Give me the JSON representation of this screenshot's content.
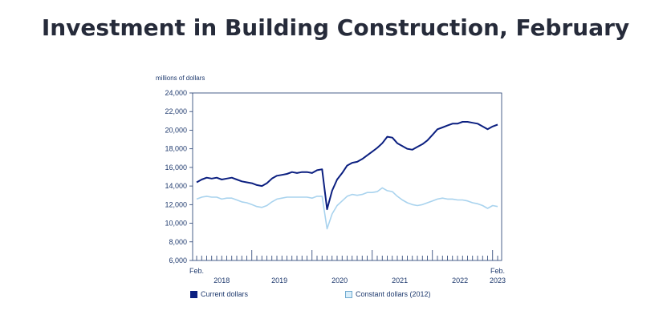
{
  "title": "Investment in Building Construction, February",
  "chart_data": {
    "type": "line",
    "title": "Investment in Building Construction, February",
    "ylabel": "millions of dollars",
    "xlabel": "",
    "ylim": [
      6000,
      24000
    ],
    "yticks": [
      6000,
      8000,
      10000,
      12000,
      14000,
      16000,
      18000,
      20000,
      22000,
      24000
    ],
    "ytick_labels": [
      "6,000",
      "8,000",
      "10,000",
      "12,000",
      "14,000",
      "16,000",
      "18,000",
      "20,000",
      "22,000",
      "24,000"
    ],
    "x_start_label": "Feb.",
    "x_end_label": "Feb.",
    "year_labels": [
      "2018",
      "2019",
      "2020",
      "2021",
      "2022",
      "2023"
    ],
    "grid": false,
    "legend_position": "bottom",
    "series": [
      {
        "name": "Current dollars",
        "color": "#0b1f80",
        "fill": "#0b1f80",
        "values": [
          14400,
          14700,
          14900,
          14800,
          14900,
          14700,
          14800,
          14900,
          14700,
          14500,
          14400,
          14300,
          14100,
          14000,
          14300,
          14800,
          15100,
          15200,
          15300,
          15500,
          15400,
          15500,
          15500,
          15400,
          15700,
          15800,
          11500,
          13500,
          14700,
          15400,
          16200,
          16500,
          16600,
          16900,
          17300,
          17700,
          18100,
          18600,
          19300,
          19200,
          18600,
          18300,
          18000,
          17900,
          18200,
          18500,
          18900,
          19500,
          20100,
          20300,
          20500,
          20700,
          20700,
          20900,
          20900,
          20800,
          20700,
          20400,
          20100,
          20400,
          20600
        ]
      },
      {
        "name": "Constant dollars (2012)",
        "color": "#a9d3ee",
        "fill": "#d9eefa",
        "values": [
          12600,
          12800,
          12900,
          12800,
          12800,
          12600,
          12700,
          12700,
          12500,
          12300,
          12200,
          12000,
          11800,
          11700,
          11900,
          12300,
          12600,
          12700,
          12800,
          12800,
          12800,
          12800,
          12800,
          12700,
          12900,
          12900,
          9400,
          11000,
          11900,
          12400,
          12900,
          13100,
          13000,
          13100,
          13300,
          13300,
          13400,
          13800,
          13500,
          13400,
          12900,
          12500,
          12200,
          12000,
          11900,
          12000,
          12200,
          12400,
          12600,
          12700,
          12600,
          12600,
          12500,
          12500,
          12400,
          12200,
          12100,
          11900,
          11600,
          11900,
          11800
        ]
      }
    ]
  }
}
